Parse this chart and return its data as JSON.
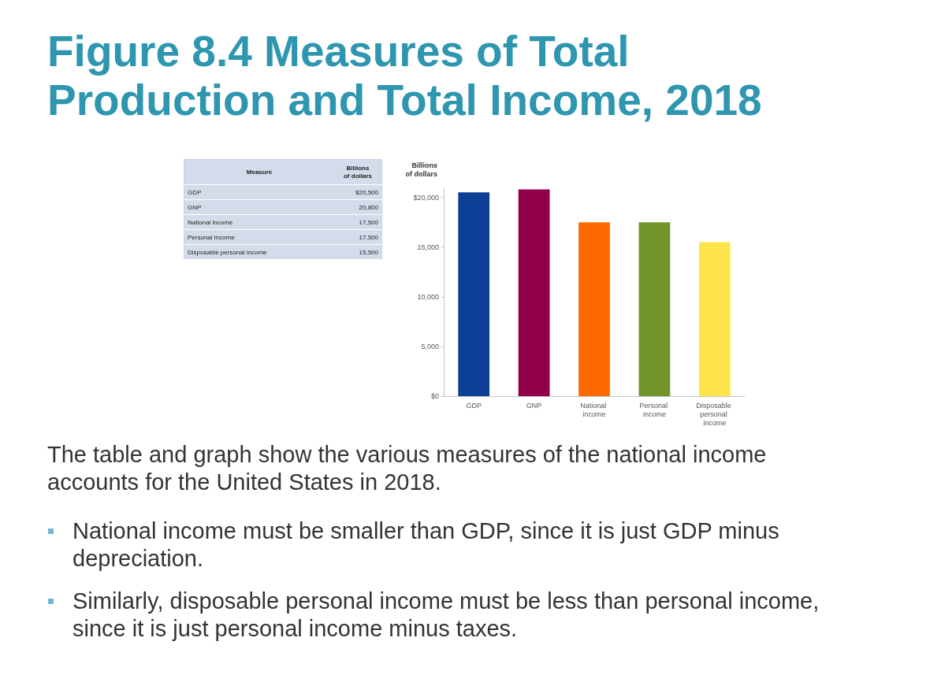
{
  "chart_data": [
    {
      "type": "other",
      "annotations": [
        "Measure",
        "Billions of dollars",
        "GDP",
        "$20,500",
        "GNP",
        "20,800",
        "National income",
        "17,500",
        "Personal income",
        "17,500",
        "Disposable personal income",
        "15,500"
      ]
    },
    {
      "type": "bar",
      "title": "Figure 8.4 Measures of Total Production and Total Income, 2018",
      "ylabel": "Billions of dollars",
      "categories": [
        "GDP",
        "GNP",
        "National income",
        "Personal income",
        "Disposable personal income"
      ],
      "values": [
        20500,
        20800,
        17500,
        17500,
        15500
      ],
      "colors": [
        "#0d3f94",
        "#8f0048",
        "#fe6a00",
        "#71952a",
        "#fde44a"
      ],
      "ylim": [
        0,
        21000
      ],
      "yticks": [
        {
          "value": 0,
          "label": "$0"
        },
        {
          "value": 5000,
          "label": "5,000"
        },
        {
          "value": 10000,
          "label": "10,000"
        },
        {
          "value": 15000,
          "label": "15,000"
        },
        {
          "value": 20000,
          "label": "$20,000"
        }
      ],
      "annotations": [
        "The table and graph show the various measures of the national income accounts for the United States in 2018.",
        "National income must be smaller than GDP, since it is just GDP minus depreciation.",
        "Similarly, disposable personal income must be less than personal income, since it is just personal income minus taxes."
      ]
    }
  ]
}
